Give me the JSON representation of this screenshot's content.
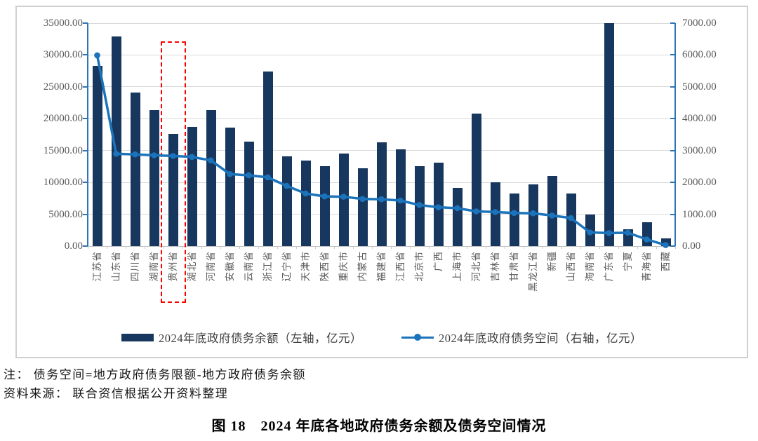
{
  "figure": {
    "note_line1": "注： 债务空间=地方政府债务限额-地方政府债务余额",
    "note_line2": "资料来源： 联合资信根据公开资料整理",
    "caption": "图 18　2024 年底各地政府债务余额及债务空间情况"
  },
  "chart_data": {
    "type": "bar",
    "subtype": "bar-line-combo",
    "categories": [
      "江苏省",
      "山东省",
      "四川省",
      "湖南省",
      "贵州省",
      "湖北省",
      "河南省",
      "安徽省",
      "云南省",
      "浙江省",
      "辽宁省",
      "天津市",
      "陕西省",
      "重庆市",
      "内蒙古",
      "福建省",
      "江西省",
      "北京市",
      "广西",
      "上海市",
      "河北省",
      "吉林省",
      "甘肃省",
      "黑龙江省",
      "新疆",
      "山西省",
      "海南省",
      "广东省",
      "宁夏",
      "青海省",
      "西藏"
    ],
    "series": [
      {
        "name": "2024年底政府债务余额（左轴，亿元）",
        "type": "bar",
        "axis": "left",
        "color": "#17375e",
        "values": [
          28300,
          32900,
          24100,
          21400,
          17600,
          18700,
          21400,
          18600,
          16400,
          27400,
          14100,
          13400,
          12600,
          14500,
          12200,
          16300,
          15200,
          12500,
          13100,
          9100,
          20800,
          10000,
          8200,
          9700,
          11000,
          8300,
          5000,
          35000,
          2600,
          3700,
          1200
        ]
      },
      {
        "name": "2024年底政府债务空间（右轴，亿元）",
        "type": "line",
        "axis": "right",
        "color": "#1b74bb",
        "values": [
          5990,
          2900,
          2880,
          2850,
          2830,
          2800,
          2690,
          2260,
          2220,
          2160,
          1890,
          1650,
          1560,
          1550,
          1480,
          1470,
          1430,
          1290,
          1220,
          1190,
          1090,
          1070,
          1040,
          1030,
          960,
          880,
          430,
          410,
          420,
          210,
          30
        ]
      }
    ],
    "left_axis": {
      "min": 0,
      "max": 35000,
      "step": 5000,
      "tick_format": "0.00",
      "color": "#2e75b6",
      "label_color": "#595959"
    },
    "right_axis": {
      "min": 0,
      "max": 7000,
      "step": 1000,
      "tick_format": "0.00",
      "color": "#2e75b6",
      "label_color": "#595959"
    },
    "grid": true,
    "legend_position": "bottom",
    "highlight": {
      "category": "贵州省",
      "style": "dashed-box",
      "color": "#ff0000"
    }
  }
}
